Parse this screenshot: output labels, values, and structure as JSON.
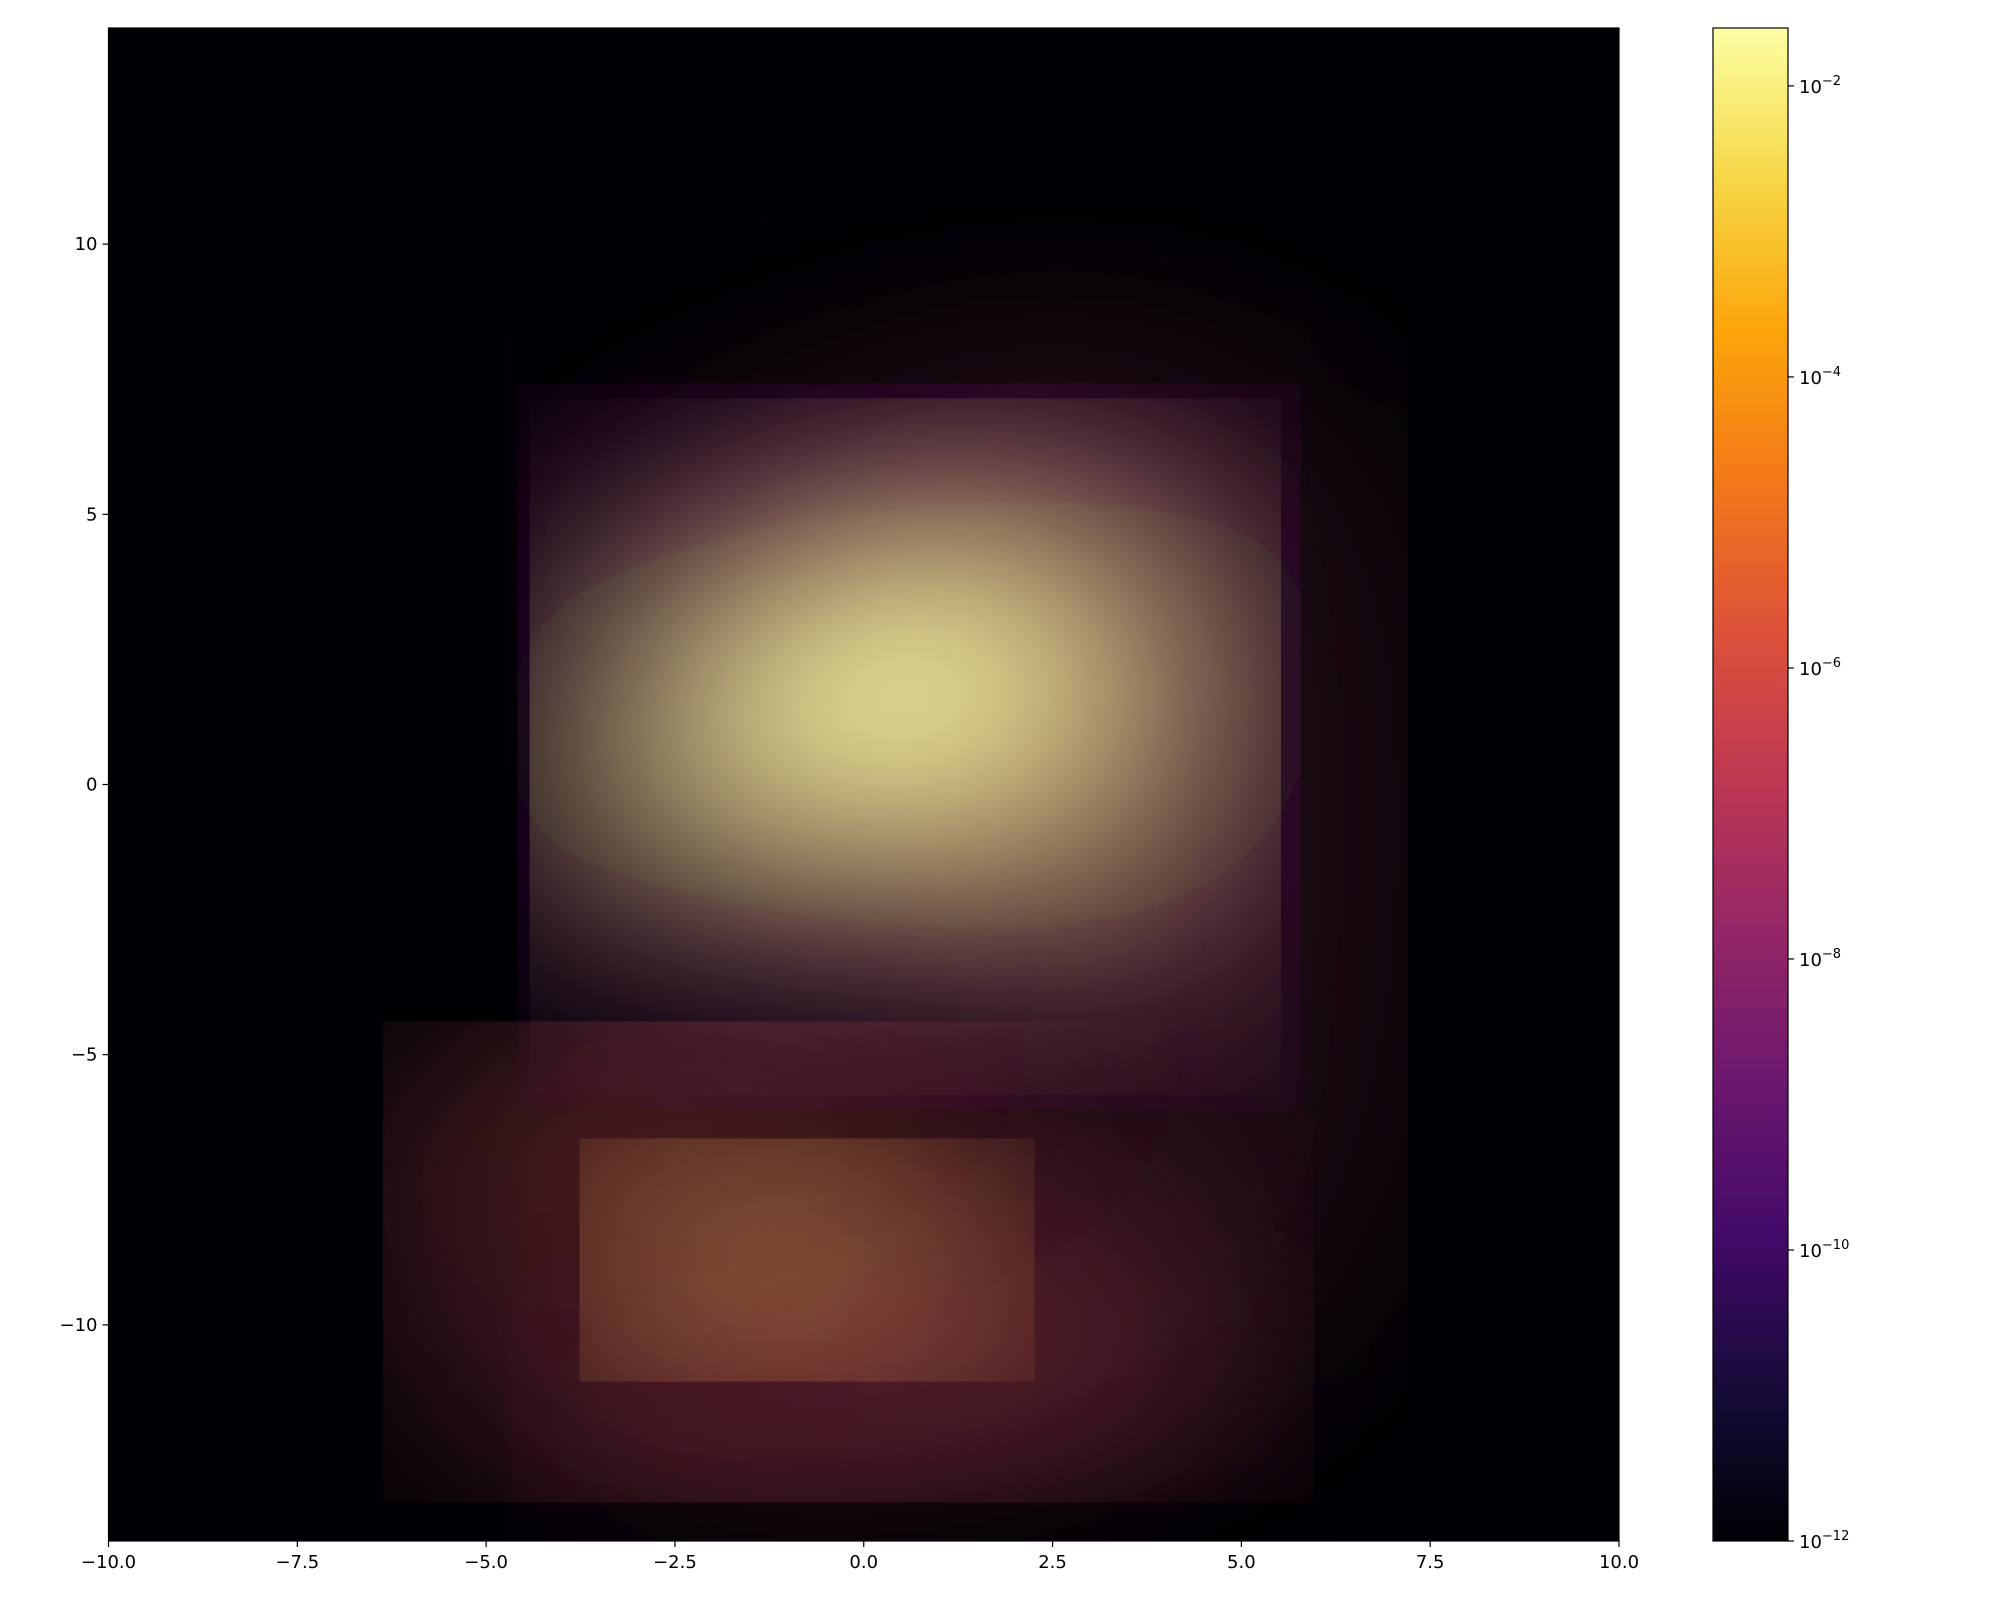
{
  "chart_data": {
    "type": "heatmap",
    "xlim": [
      -10,
      10
    ],
    "ylim": [
      -14,
      14
    ],
    "xticks": [
      {
        "value": -10,
        "label": "−10.0"
      },
      {
        "value": -7.5,
        "label": "−7.5"
      },
      {
        "value": -5,
        "label": "−5.0"
      },
      {
        "value": -2.5,
        "label": "−2.5"
      },
      {
        "value": 0,
        "label": "0.0"
      },
      {
        "value": 2.5,
        "label": "2.5"
      },
      {
        "value": 5,
        "label": "5.0"
      },
      {
        "value": 7.5,
        "label": "7.5"
      },
      {
        "value": 10,
        "label": "10.0"
      }
    ],
    "yticks": [
      {
        "value": -10,
        "label": "−10"
      },
      {
        "value": -5,
        "label": "−5"
      },
      0,
      5,
      10
    ],
    "colorbar": {
      "colormap": "inferno",
      "scale": "log",
      "lim": [
        1e-12,
        0.025
      ],
      "ticks": [
        {
          "value": 1e-12,
          "label": "10−12"
        },
        {
          "value": 1e-10,
          "label": "10−10"
        },
        {
          "value": 1e-08,
          "label": "10−8"
        },
        {
          "value": 1e-06,
          "label": "10−6"
        },
        {
          "value": 0.0001,
          "label": "10−4"
        },
        {
          "value": 0.01,
          "label": "10−2"
        }
      ]
    }
  }
}
